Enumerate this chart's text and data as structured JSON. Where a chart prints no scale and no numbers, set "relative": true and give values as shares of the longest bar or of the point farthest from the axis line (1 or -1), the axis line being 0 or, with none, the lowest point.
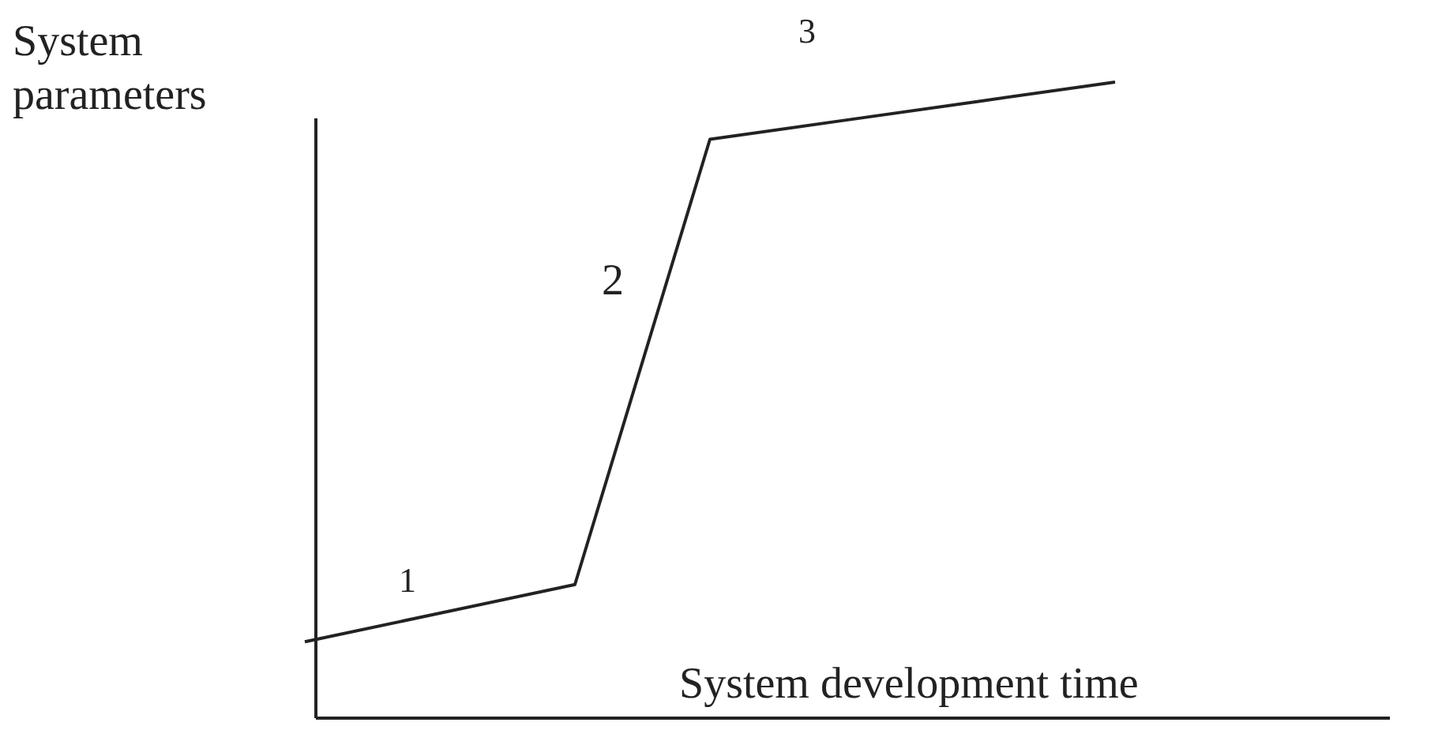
{
  "chart_data": {
    "type": "line",
    "relative": true,
    "ylabel": "System\nparameters",
    "xlabel": "System development time",
    "categories": [
      null,
      null,
      null,
      null,
      null,
      null,
      null
    ],
    "marker": "none",
    "line_style": "solid",
    "series": [
      {
        "color": "#222222",
        "values": [
          0.12,
          0.165,
          0.21,
          0.91,
          0.94,
          0.97,
          1.0
        ]
      }
    ],
    "annotations": [
      "1",
      "2",
      "3"
    ]
  }
}
